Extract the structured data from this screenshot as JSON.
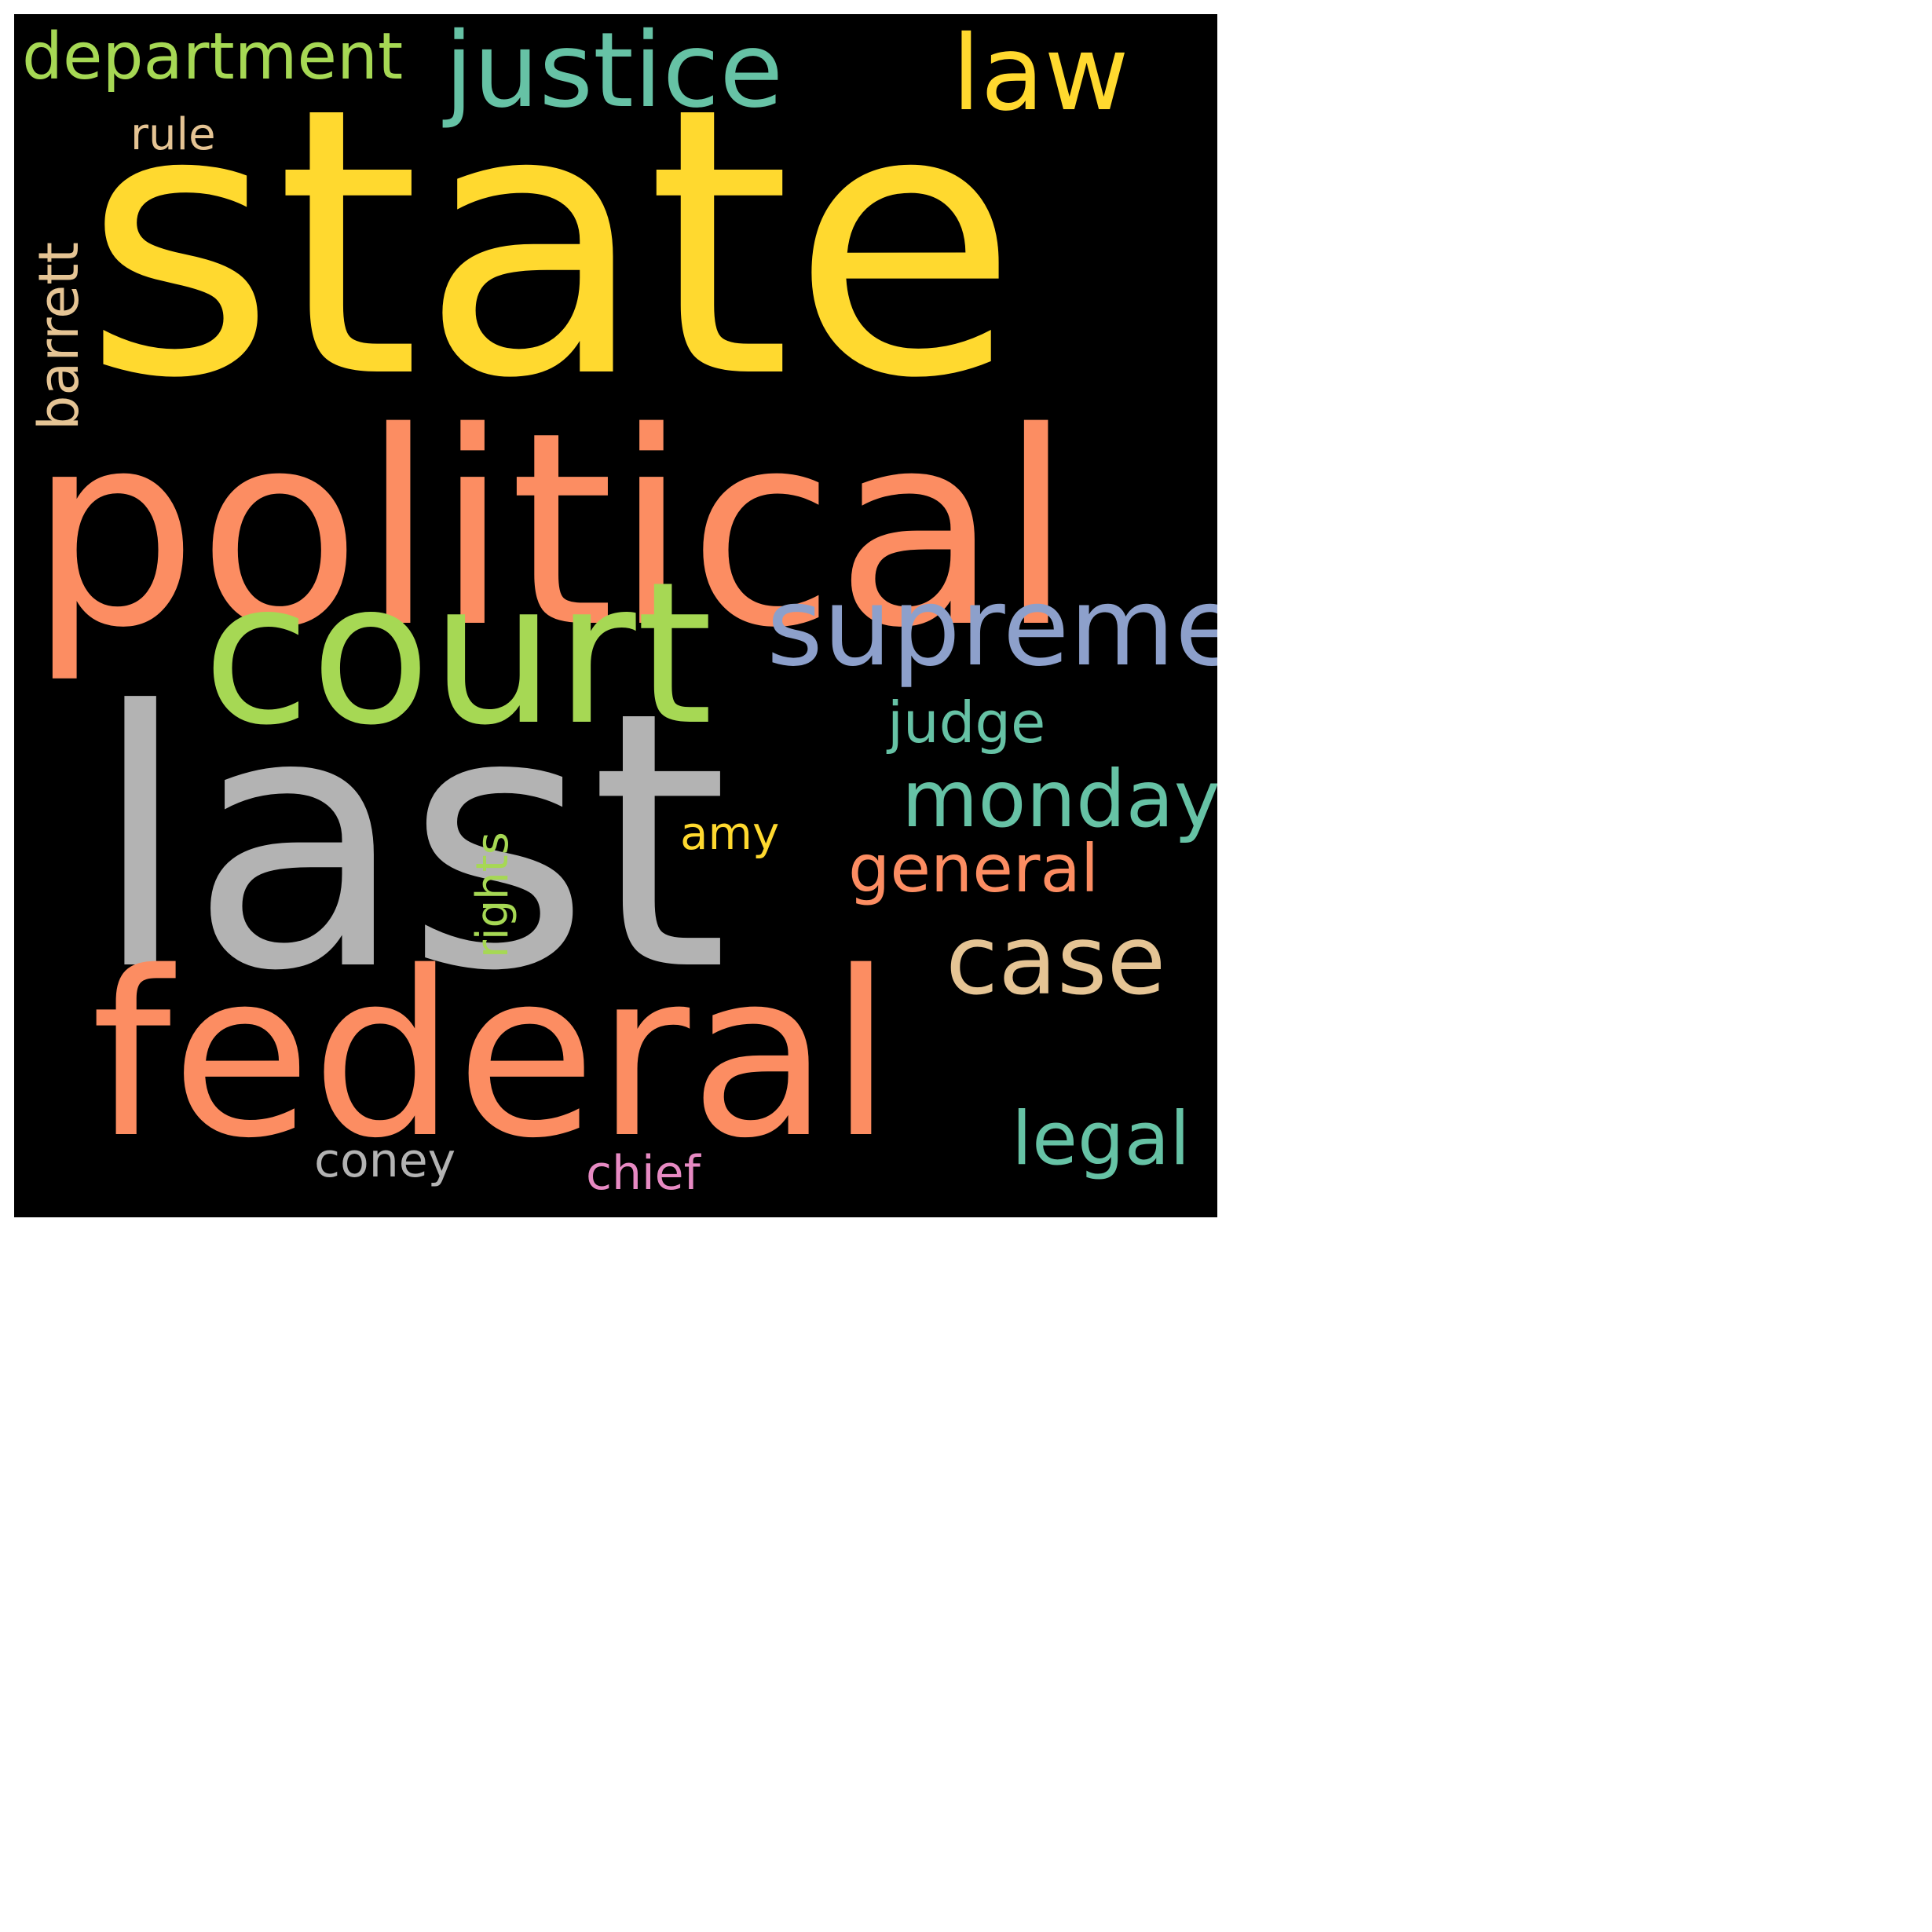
{
  "words": [
    {
      "key": "state",
      "text": "state",
      "color": "#ffd92f"
    },
    {
      "key": "political",
      "text": "political",
      "color": "#fc8d62"
    },
    {
      "key": "last",
      "text": "last",
      "color": "#b3b3b3"
    },
    {
      "key": "federal",
      "text": "federal",
      "color": "#fc8d62"
    },
    {
      "key": "court",
      "text": "court",
      "color": "#a6d854"
    },
    {
      "key": "supreme",
      "text": "supreme",
      "color": "#8da0cb"
    },
    {
      "key": "justice",
      "text": "justice",
      "color": "#66c2a5"
    },
    {
      "key": "department",
      "text": "department",
      "color": "#a6d854"
    },
    {
      "key": "law",
      "text": "law",
      "color": "#ffd92f"
    },
    {
      "key": "rule",
      "text": "rule",
      "color": "#e5c494"
    },
    {
      "key": "barrett",
      "text": "barrett",
      "color": "#e5c494"
    },
    {
      "key": "judge",
      "text": "judge",
      "color": "#66c2a5"
    },
    {
      "key": "monday",
      "text": "monday",
      "color": "#66c2a5"
    },
    {
      "key": "amy",
      "text": "amy",
      "color": "#ffd92f"
    },
    {
      "key": "general",
      "text": "general",
      "color": "#fc8d62"
    },
    {
      "key": "rights",
      "text": "rights",
      "color": "#a6d854"
    },
    {
      "key": "case",
      "text": "case",
      "color": "#e5c494"
    },
    {
      "key": "legal",
      "text": "legal",
      "color": "#66c2a5"
    },
    {
      "key": "coney",
      "text": "coney",
      "color": "#b3b3b3"
    },
    {
      "key": "chief",
      "text": "chief",
      "color": "#e78ac3"
    }
  ]
}
